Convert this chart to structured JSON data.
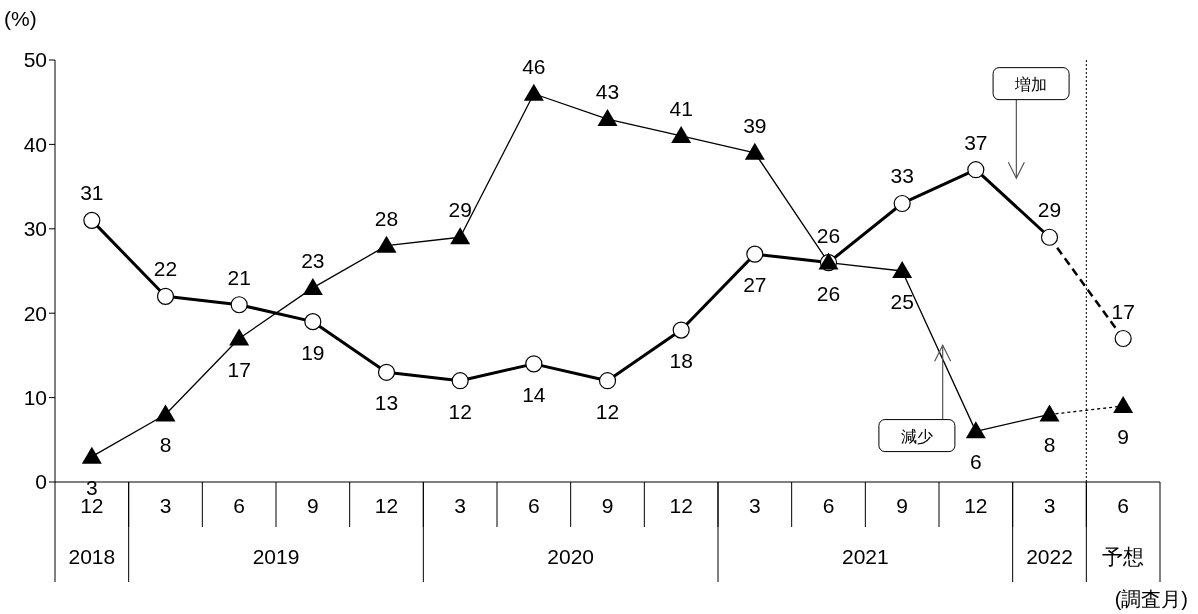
{
  "chart_data": {
    "type": "line",
    "ylabel": "(%)",
    "categories": [
      "12",
      "3",
      "6",
      "9",
      "12",
      "3",
      "6",
      "9",
      "12",
      "3",
      "6",
      "9",
      "12",
      "3",
      "6"
    ],
    "series": [
      {
        "name": "増加",
        "color": "#000000",
        "marker": "circle",
        "line_style": "solid",
        "values": [
          31,
          22,
          21,
          19,
          13,
          12,
          14,
          12,
          18,
          27,
          26,
          33,
          37,
          29,
          null
        ]
      },
      {
        "name": "減少",
        "color": "#000000",
        "marker": "triangle",
        "line_style": "solid",
        "values": [
          3,
          8,
          17,
          23,
          28,
          29,
          46,
          43,
          41,
          39,
          26,
          25,
          6,
          8,
          null
        ]
      },
      {
        "color": "#000000",
        "marker": "circle",
        "line_style": "dashed",
        "values": [
          null,
          null,
          null,
          null,
          null,
          null,
          null,
          null,
          null,
          null,
          null,
          null,
          null,
          29,
          17
        ],
        "value_labels": [
          null,
          null,
          null,
          null,
          null,
          null,
          null,
          null,
          null,
          null,
          null,
          null,
          null,
          null,
          "17"
        ]
      },
      {
        "color": "#000000",
        "marker": "triangle",
        "line_style": "dotted",
        "values": [
          null,
          null,
          null,
          null,
          null,
          null,
          null,
          null,
          null,
          null,
          null,
          null,
          null,
          8,
          9
        ],
        "value_labels": [
          null,
          null,
          null,
          null,
          null,
          null,
          null,
          null,
          null,
          null,
          null,
          null,
          null,
          null,
          "9"
        ]
      }
    ],
    "ylim": [
      0,
      50
    ],
    "yticks": [
      0,
      10,
      20,
      30,
      40,
      50
    ],
    "data_labels": true,
    "annotations": [
      "2018",
      "2019",
      "2020",
      "2021",
      "2022",
      "予想",
      "(調査月)"
    ]
  }
}
